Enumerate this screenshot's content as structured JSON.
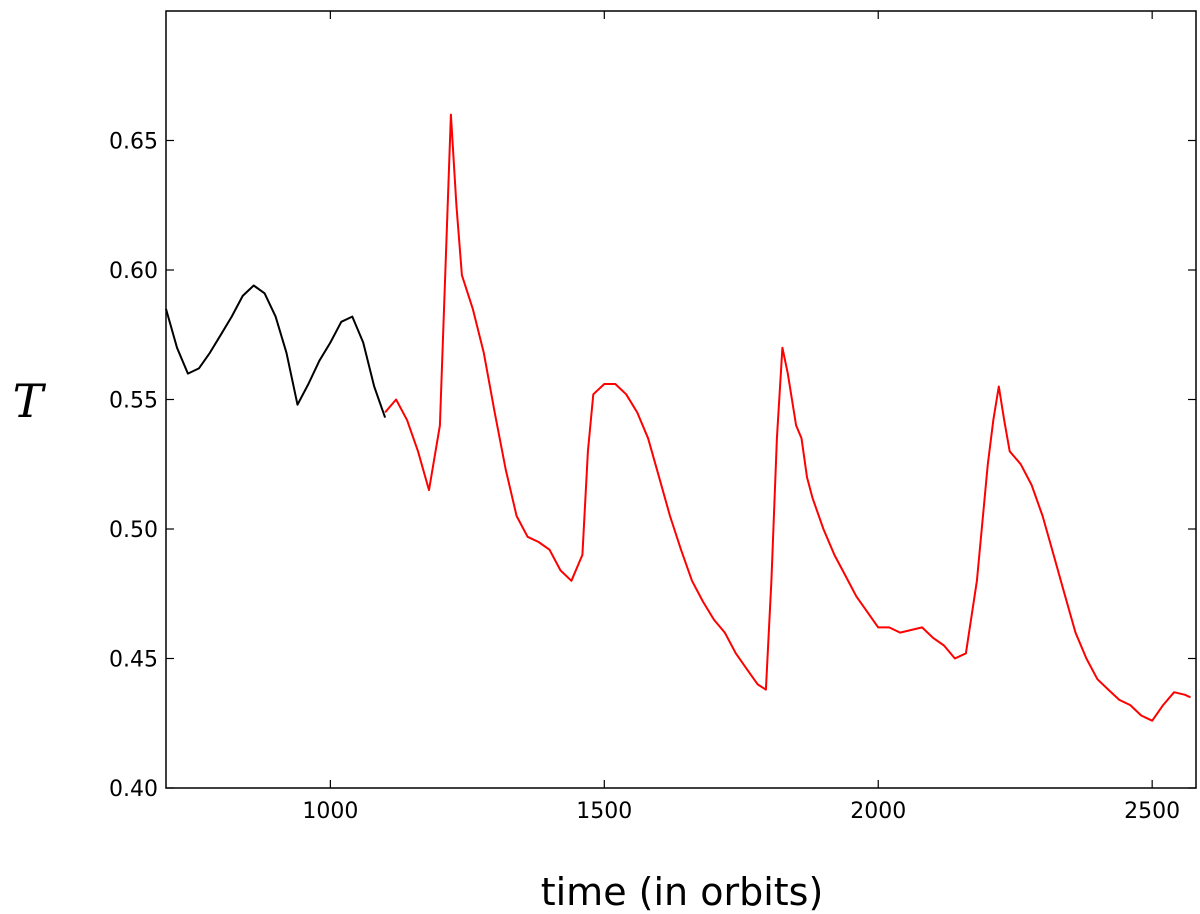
{
  "chart_data": {
    "type": "line",
    "title": "",
    "xlabel": "time (in orbits)",
    "ylabel": "T",
    "xlim": [
      700,
      2580
    ],
    "ylim": [
      0.4,
      0.7
    ],
    "x_ticks": [
      1000,
      1500,
      2000,
      2500
    ],
    "x_tick_labels": [
      "1000",
      "1500",
      "2000",
      "2500"
    ],
    "y_ticks": [
      0.4,
      0.45,
      0.5,
      0.55,
      0.6,
      0.65
    ],
    "y_tick_labels": [
      "0.40",
      "0.45",
      "0.50",
      "0.55",
      "0.60",
      "0.65"
    ],
    "grid": false,
    "series": [
      {
        "color": "#000000",
        "x": [
          700,
          720,
          740,
          760,
          780,
          800,
          820,
          840,
          860,
          880,
          900,
          920,
          940,
          960,
          980,
          1000,
          1020,
          1040,
          1060,
          1080,
          1100
        ],
        "y": [
          0.585,
          0.57,
          0.56,
          0.562,
          0.568,
          0.575,
          0.582,
          0.59,
          0.594,
          0.591,
          0.582,
          0.568,
          0.548,
          0.556,
          0.565,
          0.572,
          0.58,
          0.582,
          0.572,
          0.555,
          0.543
        ]
      },
      {
        "color": "#ff0000",
        "x": [
          1100,
          1120,
          1140,
          1160,
          1180,
          1200,
          1210,
          1220,
          1230,
          1240,
          1260,
          1280,
          1300,
          1320,
          1340,
          1360,
          1380,
          1400,
          1420,
          1440,
          1460,
          1470,
          1480,
          1500,
          1520,
          1540,
          1560,
          1580,
          1600,
          1620,
          1640,
          1660,
          1680,
          1700,
          1720,
          1740,
          1760,
          1780,
          1795,
          1805,
          1815,
          1825,
          1835,
          1850,
          1860,
          1870,
          1880,
          1900,
          1920,
          1940,
          1960,
          1980,
          2000,
          2020,
          2040,
          2060,
          2080,
          2100,
          2120,
          2140,
          2160,
          2180,
          2200,
          2210,
          2220,
          2230,
          2240,
          2260,
          2280,
          2300,
          2320,
          2340,
          2360,
          2380,
          2400,
          2420,
          2440,
          2460,
          2480,
          2500,
          2520,
          2540,
          2560,
          2570
        ],
        "y": [
          0.545,
          0.55,
          0.542,
          0.53,
          0.515,
          0.54,
          0.6,
          0.66,
          0.625,
          0.598,
          0.585,
          0.568,
          0.545,
          0.523,
          0.505,
          0.497,
          0.495,
          0.492,
          0.484,
          0.48,
          0.49,
          0.53,
          0.552,
          0.556,
          0.556,
          0.552,
          0.545,
          0.535,
          0.52,
          0.505,
          0.492,
          0.48,
          0.472,
          0.465,
          0.46,
          0.452,
          0.446,
          0.44,
          0.438,
          0.48,
          0.535,
          0.57,
          0.56,
          0.54,
          0.535,
          0.52,
          0.512,
          0.5,
          0.49,
          0.482,
          0.474,
          0.468,
          0.462,
          0.462,
          0.46,
          0.461,
          0.462,
          0.458,
          0.455,
          0.45,
          0.452,
          0.48,
          0.525,
          0.542,
          0.555,
          0.542,
          0.53,
          0.525,
          0.517,
          0.505,
          0.49,
          0.475,
          0.46,
          0.45,
          0.442,
          0.438,
          0.434,
          0.432,
          0.428,
          0.426,
          0.432,
          0.437,
          0.436,
          0.435
        ]
      }
    ]
  }
}
